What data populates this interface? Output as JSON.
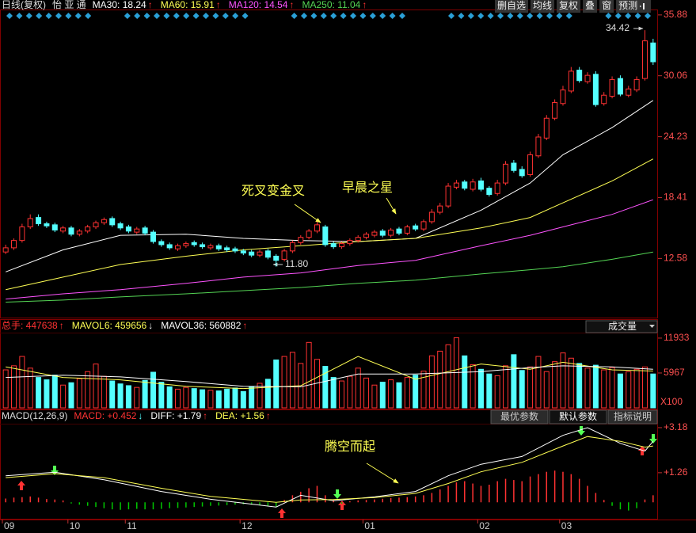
{
  "toolbar": [
    "删自选",
    "均线",
    "复权",
    "叠",
    "窗",
    "预测"
  ],
  "panel_controls": {
    "volume_selector": "成交量",
    "macd_tabs": [
      "最优参数",
      "默认参数",
      "指标说明"
    ]
  },
  "chart_data": [
    {
      "type": "candlestick",
      "title": "日线(复权)",
      "subtitle": "怡 亚 通",
      "ylim": [
        7.0,
        36.4
      ],
      "yticks": [
        35.88,
        30.06,
        24.23,
        18.41,
        12.58
      ],
      "up_color": "#ff3232",
      "down_color": "#54ffff",
      "open": [
        13.2,
        13.6,
        14.3,
        15.6,
        16.5,
        15.9,
        15.8,
        15.2,
        15.5,
        14.9,
        15.2,
        15.6,
        16.0,
        16.4,
        15.9,
        15.6,
        15.1,
        15.5,
        15.1,
        14.2,
        13.9,
        13.5,
        13.8,
        14.1,
        13.9,
        13.6,
        13.8,
        13.6,
        13.5,
        13.3,
        13.2,
        12.9,
        13.3,
        12.8,
        12.5,
        13.3,
        14.1,
        14.6,
        15.2,
        15.6,
        14.0,
        13.7,
        14.0,
        14.3,
        14.6,
        14.8,
        15.2,
        14.8,
        15.4,
        15.0,
        15.7,
        15.4,
        16.1,
        17.0,
        17.6,
        19.4,
        19.9,
        19.2,
        20.0,
        19.3,
        18.8,
        19.8,
        21.7,
        21.1,
        20.6,
        22.4,
        24.1,
        26.0,
        27.4,
        28.6,
        30.6,
        29.5,
        30.2,
        27.4,
        28.1,
        29.8,
        28.2,
        28.7,
        29.8,
        33.2
      ],
      "high": [
        13.9,
        14.5,
        15.9,
        16.8,
        16.8,
        16.1,
        16.0,
        15.7,
        15.7,
        15.4,
        15.8,
        16.2,
        16.5,
        16.6,
        16.1,
        15.8,
        15.6,
        15.7,
        15.3,
        14.4,
        14.1,
        14.0,
        14.2,
        14.3,
        14.1,
        14.0,
        14.0,
        13.8,
        13.7,
        13.5,
        13.4,
        13.4,
        13.5,
        13.0,
        13.5,
        14.3,
        14.8,
        15.4,
        16.1,
        15.8,
        14.2,
        14.2,
        14.5,
        14.8,
        15.1,
        15.3,
        15.4,
        15.5,
        15.6,
        15.8,
        15.9,
        16.3,
        17.3,
        17.9,
        19.8,
        20.1,
        20.1,
        20.2,
        20.3,
        19.5,
        20.1,
        21.9,
        22.0,
        21.4,
        22.8,
        24.5,
        26.3,
        27.8,
        29.1,
        30.9,
        30.9,
        30.4,
        30.5,
        28.5,
        30.0,
        30.1,
        29.1,
        30.0,
        34.42,
        33.6
      ],
      "low": [
        13.0,
        13.4,
        14.1,
        15.4,
        15.7,
        15.5,
        15.1,
        15.0,
        14.7,
        14.7,
        15.0,
        15.4,
        15.8,
        15.6,
        15.3,
        15.0,
        14.9,
        14.8,
        14.0,
        13.7,
        13.4,
        13.3,
        13.6,
        13.7,
        13.5,
        13.4,
        13.3,
        13.2,
        13.1,
        12.9,
        12.7,
        12.7,
        12.5,
        11.8,
        12.3,
        13.1,
        13.9,
        14.4,
        15.0,
        13.7,
        13.5,
        13.5,
        13.8,
        14.1,
        14.4,
        14.6,
        14.6,
        14.6,
        14.8,
        14.8,
        15.2,
        15.2,
        15.9,
        16.8,
        17.4,
        19.2,
        19.1,
        19.0,
        19.0,
        18.5,
        18.6,
        19.6,
        20.8,
        20.3,
        20.4,
        22.2,
        23.9,
        25.8,
        27.2,
        28.4,
        29.4,
        29.3,
        27.1,
        27.2,
        27.9,
        28.1,
        28.0,
        28.5,
        29.6,
        31.1
      ],
      "close": [
        13.6,
        14.3,
        15.6,
        16.4,
        15.9,
        15.7,
        15.3,
        15.5,
        14.9,
        15.2,
        15.6,
        16.0,
        16.3,
        15.8,
        15.5,
        15.2,
        15.4,
        15.0,
        14.2,
        13.9,
        13.6,
        13.8,
        14.0,
        13.9,
        13.7,
        13.8,
        13.5,
        13.4,
        13.3,
        13.1,
        12.9,
        13.2,
        12.7,
        12.4,
        13.3,
        14.1,
        14.6,
        15.2,
        15.8,
        13.9,
        13.7,
        14.0,
        14.3,
        14.6,
        14.9,
        15.1,
        14.8,
        15.3,
        15.0,
        15.6,
        15.4,
        16.1,
        17.0,
        17.6,
        19.5,
        19.8,
        19.3,
        19.9,
        19.2,
        18.7,
        19.8,
        21.6,
        21.0,
        20.5,
        22.5,
        24.2,
        26.0,
        27.5,
        28.7,
        30.5,
        29.6,
        30.1,
        27.3,
        28.2,
        29.7,
        28.3,
        28.8,
        29.7,
        33.4,
        31.4
      ],
      "series": [
        {
          "legend_label": "MA30: 18.24",
          "trend": "↑",
          "trend_color": "#ff3232",
          "color": "#ffffff",
          "x": [
            0,
            7,
            14,
            22,
            29,
            36,
            43,
            50,
            58,
            64,
            68,
            74,
            79
          ],
          "values": [
            11.3,
            13.4,
            14.8,
            14.9,
            14.5,
            14.3,
            14.2,
            14.5,
            17.2,
            19.8,
            22.5,
            25.1,
            27.7
          ]
        },
        {
          "legend_label": "MA60: 15.91",
          "trend": "↑",
          "trend_color": "#ff3232",
          "color": "#ffff54",
          "x": [
            0,
            7,
            14,
            22,
            29,
            36,
            43,
            50,
            58,
            64,
            68,
            74,
            79
          ],
          "values": [
            9.6,
            10.8,
            12.0,
            12.8,
            13.4,
            13.8,
            14.2,
            14.5,
            15.5,
            16.5,
            17.9,
            20.0,
            22.1
          ]
        },
        {
          "legend_label": "MA120: 14.54",
          "trend": "↑",
          "trend_color": "#ff3232",
          "color": "#ff54ff",
          "x": [
            0,
            7,
            14,
            22,
            29,
            36,
            43,
            50,
            58,
            64,
            68,
            74,
            79
          ],
          "values": [
            8.7,
            9.2,
            9.6,
            10.2,
            10.8,
            11.2,
            11.9,
            12.4,
            13.8,
            14.8,
            15.6,
            16.8,
            18.2
          ]
        },
        {
          "legend_label": "MA250: 11.04",
          "trend": "↑",
          "trend_color": "#ff3232",
          "color": "#54d454",
          "x": [
            0,
            7,
            14,
            22,
            29,
            36,
            43,
            50,
            58,
            64,
            68,
            74,
            79
          ],
          "values": [
            8.4,
            8.6,
            8.9,
            9.2,
            9.5,
            9.8,
            10.2,
            10.5,
            11.1,
            11.5,
            11.8,
            12.5,
            13.2
          ]
        }
      ],
      "annotations": [
        "34.42",
        "11.80",
        "死叉变金叉",
        "早晨之星"
      ]
    },
    {
      "type": "bar",
      "ylim": [
        0,
        12600
      ],
      "yticks": [
        11933,
        5967
      ],
      "unit_label": "X100",
      "series": [
        {
          "kind": "bar",
          "legend_label": "总手: 447638",
          "label_color": "#ff3232",
          "trend": "↑",
          "trend_color": "#ff3232",
          "color": "#ff3232",
          "down_color": "#54ffff",
          "values": [
            6500,
            7200,
            8800,
            6800,
            5200,
            4800,
            5600,
            3900,
            4300,
            5000,
            6200,
            7500,
            5400,
            4600,
            4100,
            3800,
            3500,
            4700,
            6100,
            4400,
            3600,
            3200,
            3500,
            3300,
            3100,
            3000,
            2900,
            3200,
            3400,
            2800,
            3600,
            4200,
            4900,
            8200,
            8800,
            9500,
            7600,
            11200,
            8300,
            7100,
            5200,
            4600,
            5400,
            6800,
            5100,
            3900,
            4400,
            4800,
            4300,
            5200,
            5600,
            6300,
            8900,
            9700,
            10800,
            12000,
            8900,
            7400,
            6600,
            5800,
            5500,
            7200,
            9100,
            6400,
            7000,
            8800,
            6200,
            7900,
            9400,
            8500,
            7600,
            6800,
            7300,
            6500,
            6900,
            5800,
            6200,
            6600,
            7000,
            5800
          ]
        },
        {
          "kind": "line",
          "legend_label": "MAVOL6: 459656",
          "trend": "↓",
          "trend_color": "#ffffff",
          "color": "#ffff54",
          "x": [
            0,
            7,
            14,
            22,
            29,
            36,
            43,
            50,
            58,
            64,
            68,
            74,
            79
          ],
          "values": [
            7000,
            5200,
            4800,
            3700,
            3300,
            3800,
            8800,
            4900,
            7500,
            6600,
            7800,
            6500,
            6300
          ]
        },
        {
          "kind": "line",
          "legend_label": "MAVOL36: 560882",
          "trend": "↑",
          "trend_color": "#ff3232",
          "color": "#ffffff",
          "x": [
            0,
            7,
            14,
            22,
            29,
            36,
            43,
            50,
            58,
            64,
            68,
            74,
            79
          ],
          "values": [
            5200,
            5600,
            5300,
            4500,
            3700,
            3600,
            5800,
            5800,
            6200,
            6900,
            7200,
            7000,
            6600
          ]
        }
      ]
    },
    {
      "type": "macd",
      "title": "MACD(12,26,9)",
      "ylim": [
        -0.7,
        3.28
      ],
      "yticks": [
        {
          "value": 3.18,
          "label": "+3.18"
        },
        {
          "value": 1.26,
          "label": "+1.26"
        }
      ],
      "xticks": [
        {
          "value": 0,
          "label": "09"
        },
        {
          "value": 8,
          "label": "10"
        },
        {
          "value": 15,
          "label": "11"
        },
        {
          "value": 29,
          "label": "12"
        },
        {
          "value": 44,
          "label": "01"
        },
        {
          "value": 58,
          "label": "02"
        },
        {
          "value": 68,
          "label": "03"
        }
      ],
      "series": [
        {
          "kind": "bar",
          "legend_label": "MACD: +0.452",
          "label_color": "#ff3232",
          "trend": "↓",
          "trend_color": "#54ffff",
          "color": "#ff3232",
          "down_color": "#00c800",
          "values": [
            0.16,
            0.2,
            0.22,
            0.25,
            0.2,
            0.14,
            0.12,
            0.08,
            -0.05,
            -0.1,
            -0.15,
            -0.2,
            -0.25,
            -0.3,
            -0.32,
            -0.3,
            -0.28,
            -0.3,
            -0.3,
            -0.28,
            -0.25,
            -0.24,
            -0.22,
            -0.2,
            -0.18,
            -0.15,
            -0.14,
            -0.12,
            -0.1,
            -0.08,
            -0.1,
            -0.12,
            -0.15,
            -0.18,
            0.1,
            0.3,
            0.45,
            0.6,
            0.7,
            0.3,
            0.1,
            -0.06,
            0.05,
            0.08,
            0.1,
            0.12,
            0.15,
            0.18,
            0.2,
            0.22,
            0.25,
            0.3,
            0.4,
            0.55,
            0.7,
            0.85,
            0.9,
            0.8,
            0.7,
            0.75,
            0.9,
            1.0,
            0.95,
            0.9,
            1.1,
            1.2,
            1.3,
            1.35,
            1.3,
            1.2,
            1.0,
            0.7,
            0.4,
            0.1,
            -0.15,
            -0.3,
            -0.35,
            -0.25,
            0.12,
            0.3
          ]
        },
        {
          "kind": "line",
          "legend_label": "DIFF: +1.79",
          "trend": "↑",
          "trend_color": "#ff3232",
          "color": "#ffffff",
          "x": [
            0,
            6,
            12,
            19,
            25,
            33,
            36,
            40,
            45,
            50,
            54,
            58,
            63,
            68,
            71,
            75,
            78,
            79
          ],
          "values": [
            1.13,
            1.28,
            0.96,
            0.46,
            0.13,
            -0.2,
            0.3,
            0.07,
            0.23,
            0.46,
            1.13,
            1.62,
            1.95,
            2.85,
            3.18,
            2.51,
            2.18,
            2.6
          ]
        },
        {
          "kind": "line",
          "legend_label": "DEA: +1.56",
          "trend": "↑",
          "trend_color": "#ff3232",
          "color": "#ffff54",
          "x": [
            0,
            6,
            12,
            19,
            25,
            33,
            36,
            40,
            45,
            50,
            54,
            58,
            63,
            68,
            71,
            75,
            78,
            79
          ],
          "values": [
            1.05,
            1.22,
            1.05,
            0.6,
            0.25,
            0.0,
            0.1,
            0.12,
            0.2,
            0.38,
            0.8,
            1.3,
            1.7,
            2.4,
            2.8,
            2.6,
            2.35,
            2.4
          ]
        }
      ],
      "annotations": [
        "腾空而起"
      ]
    }
  ]
}
